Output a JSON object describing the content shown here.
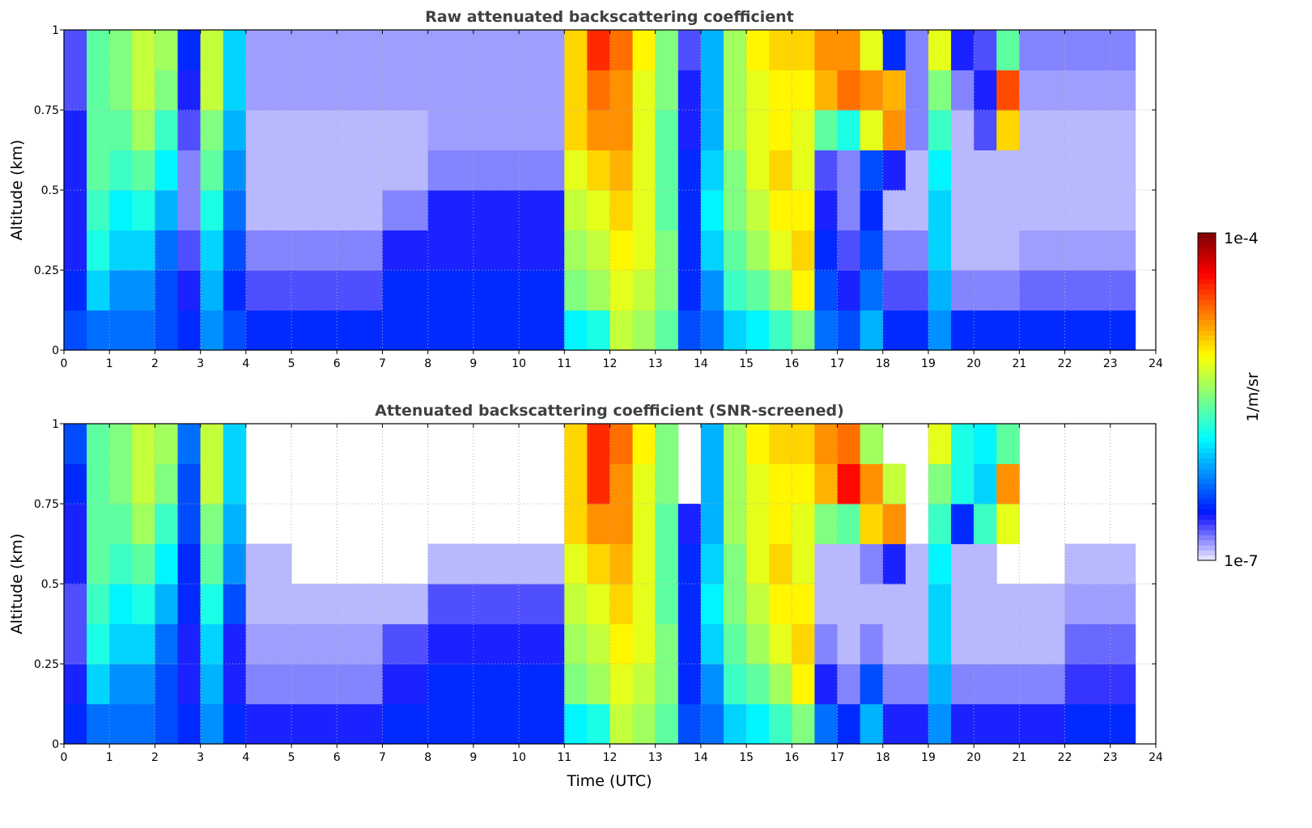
{
  "chart_data": [
    {
      "type": "heatmap",
      "title": "Raw attenuated backscattering coefficient",
      "xlabel": "",
      "ylabel": "Altitude (km)",
      "xlim": [
        0,
        24
      ],
      "ylim": [
        0,
        1
      ],
      "xticks": [
        "0",
        "1",
        "2",
        "3",
        "4",
        "5",
        "6",
        "7",
        "8",
        "9",
        "10",
        "11",
        "12",
        "13",
        "14",
        "15",
        "16",
        "17",
        "18",
        "19",
        "20",
        "21",
        "22",
        "23",
        "24"
      ],
      "yticks": [
        "0",
        "0.25",
        "0.5",
        "0.75",
        "1"
      ],
      "ytick_values": [
        0,
        0.25,
        0.5,
        0.75,
        1
      ],
      "grid": true,
      "time_bin_hours": 0.5,
      "altitude_bins_km": [
        0,
        0.125,
        0.25,
        0.375,
        0.5,
        0.625,
        0.75,
        0.875,
        1.0
      ],
      "data_end_hour": 23.55,
      "value_units": "log10(1/m/sr)",
      "z": [
        [
          -6.4,
          -6.5,
          -6.6,
          -6.6,
          -6.6,
          -6.6,
          -6.7,
          -6.7
        ],
        [
          -6.3,
          -6.0,
          -5.8,
          -5.7,
          -5.6,
          -5.6,
          -5.6,
          -5.6
        ],
        [
          -6.3,
          -6.2,
          -6.0,
          -5.9,
          -5.7,
          -5.6,
          -5.5,
          -5.5
        ],
        [
          -6.3,
          -6.2,
          -6.0,
          -5.8,
          -5.6,
          -5.4,
          -5.3,
          -5.3
        ],
        [
          -6.4,
          -6.4,
          -6.3,
          -6.1,
          -5.9,
          -5.7,
          -5.5,
          -5.4
        ],
        [
          -6.5,
          -6.6,
          -6.7,
          -6.8,
          -6.8,
          -6.7,
          -6.6,
          -6.5
        ],
        [
          -6.2,
          -6.1,
          -6.0,
          -5.8,
          -5.6,
          -5.5,
          -5.3,
          -5.3
        ],
        [
          -6.4,
          -6.5,
          -6.4,
          -6.3,
          -6.2,
          -6.1,
          -6.0,
          -6.0
        ],
        [
          -6.5,
          -6.7,
          -6.8,
          -6.9,
          -6.9,
          -6.9,
          -6.85,
          -6.85
        ],
        [
          -6.5,
          -6.7,
          -6.8,
          -6.9,
          -6.9,
          -6.9,
          -6.85,
          -6.85
        ],
        [
          -6.5,
          -6.7,
          -6.8,
          -6.9,
          -6.9,
          -6.9,
          -6.85,
          -6.85
        ],
        [
          -6.5,
          -6.7,
          -6.8,
          -6.9,
          -6.9,
          -6.9,
          -6.85,
          -6.85
        ],
        [
          -6.5,
          -6.7,
          -6.8,
          -6.9,
          -6.9,
          -6.9,
          -6.85,
          -6.85
        ],
        [
          -6.5,
          -6.7,
          -6.8,
          -6.9,
          -6.9,
          -6.9,
          -6.85,
          -6.85
        ],
        [
          -6.5,
          -6.5,
          -6.6,
          -6.8,
          -6.9,
          -6.9,
          -6.85,
          -6.85
        ],
        [
          -6.5,
          -6.5,
          -6.6,
          -6.8,
          -6.9,
          -6.9,
          -6.85,
          -6.85
        ],
        [
          -6.5,
          -6.5,
          -6.6,
          -6.6,
          -6.8,
          -6.85,
          -6.85,
          -6.85
        ],
        [
          -6.5,
          -6.5,
          -6.6,
          -6.6,
          -6.8,
          -6.85,
          -6.85,
          -6.85
        ],
        [
          -6.5,
          -6.5,
          -6.6,
          -6.6,
          -6.8,
          -6.85,
          -6.85,
          -6.85
        ],
        [
          -6.5,
          -6.5,
          -6.6,
          -6.6,
          -6.8,
          -6.85,
          -6.85,
          -6.85
        ],
        [
          -6.5,
          -6.5,
          -6.6,
          -6.6,
          -6.8,
          -6.85,
          -6.85,
          -6.85
        ],
        [
          -6.5,
          -6.5,
          -6.6,
          -6.6,
          -6.8,
          -6.85,
          -6.85,
          -6.85
        ],
        [
          -5.9,
          -5.5,
          -5.4,
          -5.3,
          -5.2,
          -5.0,
          -5.0,
          -5.0
        ],
        [
          -5.8,
          -5.4,
          -5.3,
          -5.2,
          -5.0,
          -4.8,
          -4.7,
          -4.5
        ],
        [
          -5.3,
          -5.2,
          -5.1,
          -5.0,
          -4.9,
          -4.8,
          -4.8,
          -4.7
        ],
        [
          -5.4,
          -5.3,
          -5.2,
          -5.2,
          -5.2,
          -5.2,
          -5.2,
          -5.1
        ],
        [
          -5.6,
          -5.5,
          -5.5,
          -5.6,
          -5.6,
          -5.6,
          -5.5,
          -5.5
        ],
        [
          -6.4,
          -6.5,
          -6.5,
          -6.5,
          -6.5,
          -6.6,
          -6.6,
          -6.7
        ],
        [
          -6.3,
          -6.2,
          -6.0,
          -5.9,
          -6.0,
          -6.1,
          -6.1,
          -6.1
        ],
        [
          -6.0,
          -5.7,
          -5.6,
          -5.5,
          -5.5,
          -5.4,
          -5.4,
          -5.4
        ],
        [
          -5.9,
          -5.6,
          -5.4,
          -5.3,
          -5.2,
          -5.2,
          -5.2,
          -5.1
        ],
        [
          -5.7,
          -5.4,
          -5.2,
          -5.1,
          -5.0,
          -5.1,
          -5.1,
          -5.0
        ],
        [
          -5.5,
          -5.1,
          -5.0,
          -5.1,
          -5.2,
          -5.2,
          -5.1,
          -5.0
        ],
        [
          -6.3,
          -6.4,
          -6.5,
          -6.6,
          -6.7,
          -5.6,
          -4.9,
          -4.8
        ],
        [
          -6.4,
          -6.6,
          -6.7,
          -6.8,
          -6.8,
          -5.8,
          -4.7,
          -4.8
        ],
        [
          -6.1,
          -6.3,
          -6.4,
          -6.5,
          -6.4,
          -5.2,
          -4.8,
          -5.2
        ],
        [
          -6.5,
          -6.7,
          -6.8,
          -6.9,
          -6.6,
          -4.8,
          -4.9,
          -6.5
        ],
        [
          -6.5,
          -6.7,
          -6.8,
          -6.9,
          -6.9,
          -6.8,
          -6.8,
          -6.8
        ],
        [
          -6.2,
          -6.1,
          -6.0,
          -6.0,
          -5.9,
          -5.7,
          -5.5,
          -5.2
        ],
        [
          -6.5,
          -6.8,
          -6.9,
          -6.9,
          -6.9,
          -6.9,
          -6.8,
          -6.6
        ],
        [
          -6.5,
          -6.8,
          -6.9,
          -6.9,
          -6.9,
          -6.7,
          -6.6,
          -6.7
        ],
        [
          -6.5,
          -6.8,
          -6.9,
          -6.9,
          -6.9,
          -5.0,
          -4.6,
          -5.6
        ],
        [
          -6.5,
          -6.75,
          -6.85,
          -6.9,
          -6.9,
          -6.9,
          -6.85,
          -6.8
        ],
        [
          -6.5,
          -6.75,
          -6.85,
          -6.9,
          -6.9,
          -6.9,
          -6.85,
          -6.8
        ],
        [
          -6.5,
          -6.75,
          -6.85,
          -6.9,
          -6.9,
          -6.9,
          -6.85,
          -6.8
        ],
        [
          -6.5,
          -6.75,
          -6.85,
          -6.9,
          -6.9,
          -6.9,
          -6.85,
          -6.8
        ],
        [
          -6.5,
          -6.75,
          -6.85,
          -6.9,
          -6.9,
          -6.9,
          -6.85,
          -6.8
        ],
        [
          -6.5,
          -6.75,
          -6.85,
          -6.9,
          -6.9,
          -6.9,
          -6.85,
          -6.8
        ]
      ]
    },
    {
      "type": "heatmap",
      "title": "Attenuated backscattering coefficient (SNR-screened)",
      "xlabel": "Time (UTC)",
      "ylabel": "Altitude (km)",
      "xlim": [
        0,
        24
      ],
      "ylim": [
        0,
        1
      ],
      "xticks": [
        "0",
        "1",
        "2",
        "3",
        "4",
        "5",
        "6",
        "7",
        "8",
        "9",
        "10",
        "11",
        "12",
        "13",
        "14",
        "15",
        "16",
        "17",
        "18",
        "19",
        "20",
        "21",
        "22",
        "23",
        "24"
      ],
      "yticks": [
        "0",
        "0.25",
        "0.5",
        "0.75",
        "1"
      ],
      "ytick_values": [
        0,
        0.25,
        0.5,
        0.75,
        1
      ],
      "grid": true,
      "time_bin_hours": 0.5,
      "altitude_bins_km": [
        0,
        0.125,
        0.25,
        0.375,
        0.5,
        0.625,
        0.75,
        0.875,
        1.0
      ],
      "data_end_hour": 23.55,
      "value_units": "log10(1/m/sr)",
      "z": [
        [
          -6.5,
          -6.6,
          -6.7,
          -6.7,
          -6.6,
          -6.6,
          -6.5,
          -6.4
        ],
        [
          -6.3,
          -6.0,
          -5.8,
          -5.7,
          -5.6,
          -5.6,
          -5.6,
          -5.6
        ],
        [
          -6.3,
          -6.2,
          -6.0,
          -5.9,
          -5.7,
          -5.6,
          -5.5,
          -5.5
        ],
        [
          -6.3,
          -6.2,
          -6.0,
          -5.8,
          -5.6,
          -5.4,
          -5.3,
          -5.3
        ],
        [
          -6.4,
          -6.4,
          -6.3,
          -6.1,
          -5.9,
          -5.7,
          -5.5,
          -5.4
        ],
        [
          -6.5,
          -6.6,
          -6.6,
          -6.5,
          -6.5,
          -6.4,
          -6.4,
          -6.3
        ],
        [
          -6.2,
          -6.1,
          -6.0,
          -5.8,
          -5.6,
          -5.5,
          -5.3,
          -5.3
        ],
        [
          -6.5,
          -6.6,
          -6.6,
          -6.4,
          -6.2,
          -6.1,
          -6.0,
          -6.0
        ],
        [
          -6.6,
          -6.8,
          -6.85,
          -6.9,
          -6.9,
          null,
          null,
          null
        ],
        [
          -6.6,
          -6.8,
          -6.85,
          -6.9,
          -6.9,
          null,
          null,
          null
        ],
        [
          -6.6,
          -6.8,
          -6.85,
          -6.9,
          null,
          null,
          null,
          null
        ],
        [
          -6.6,
          -6.8,
          -6.85,
          -6.9,
          null,
          null,
          null,
          null
        ],
        [
          -6.6,
          -6.8,
          -6.85,
          -6.9,
          null,
          null,
          null,
          null
        ],
        [
          -6.6,
          -6.8,
          -6.85,
          -6.9,
          null,
          null,
          null,
          null
        ],
        [
          -6.5,
          -6.6,
          -6.7,
          -6.9,
          null,
          null,
          null,
          null
        ],
        [
          -6.5,
          -6.6,
          -6.7,
          -6.9,
          null,
          null,
          null,
          null
        ],
        [
          -6.5,
          -6.5,
          -6.6,
          -6.7,
          -6.9,
          null,
          null,
          null
        ],
        [
          -6.5,
          -6.5,
          -6.6,
          -6.7,
          -6.9,
          null,
          null,
          null
        ],
        [
          -6.5,
          -6.5,
          -6.6,
          -6.7,
          -6.9,
          null,
          null,
          null
        ],
        [
          -6.5,
          -6.5,
          -6.6,
          -6.7,
          -6.9,
          null,
          null,
          null
        ],
        [
          -6.5,
          -6.5,
          -6.6,
          -6.7,
          -6.9,
          null,
          null,
          null
        ],
        [
          -6.5,
          -6.5,
          -6.6,
          -6.7,
          -6.9,
          null,
          null,
          null
        ],
        [
          -5.9,
          -5.5,
          -5.4,
          -5.3,
          -5.2,
          -5.0,
          -5.0,
          -5.0
        ],
        [
          -5.8,
          -5.4,
          -5.3,
          -5.2,
          -5.0,
          -4.8,
          -4.5,
          -4.5
        ],
        [
          -5.3,
          -5.2,
          -5.1,
          -5.0,
          -4.9,
          -4.8,
          -4.8,
          -4.7
        ],
        [
          -5.4,
          -5.3,
          -5.2,
          -5.2,
          -5.2,
          -5.2,
          -5.2,
          -5.1
        ],
        [
          -5.6,
          -5.5,
          -5.5,
          -5.6,
          -5.6,
          -5.6,
          -5.5,
          -5.5
        ],
        [
          -6.4,
          -6.5,
          -6.5,
          -6.5,
          -6.5,
          -6.6,
          null,
          null
        ],
        [
          -6.3,
          -6.2,
          -6.0,
          -5.9,
          -6.0,
          -6.1,
          -6.1,
          -6.1
        ],
        [
          -6.0,
          -5.7,
          -5.6,
          -5.5,
          -5.5,
          -5.4,
          -5.4,
          -5.4
        ],
        [
          -5.9,
          -5.6,
          -5.4,
          -5.3,
          -5.2,
          -5.2,
          -5.2,
          -5.1
        ],
        [
          -5.7,
          -5.4,
          -5.2,
          -5.1,
          -5.0,
          -5.1,
          -5.1,
          -5.0
        ],
        [
          -5.5,
          -5.1,
          -5.0,
          -5.1,
          -5.2,
          -5.2,
          -5.1,
          -5.0
        ],
        [
          -6.3,
          -6.6,
          -6.8,
          -6.9,
          -6.9,
          -5.5,
          -4.9,
          -4.8
        ],
        [
          -6.5,
          -6.8,
          -6.9,
          -6.9,
          -6.9,
          -5.6,
          -4.4,
          -4.7
        ],
        [
          -6.1,
          -6.4,
          -6.8,
          -6.9,
          -6.8,
          -5.0,
          -4.8,
          -5.4
        ],
        [
          -6.6,
          -6.8,
          -6.9,
          -6.9,
          -6.6,
          -4.8,
          -5.3,
          null
        ],
        [
          -6.6,
          -6.8,
          -6.9,
          -6.9,
          -6.9,
          null,
          null,
          null
        ],
        [
          -6.2,
          -6.1,
          -6.0,
          -6.0,
          -5.9,
          -5.7,
          -5.5,
          -5.2
        ],
        [
          -6.6,
          -6.8,
          -6.9,
          -6.9,
          -6.9,
          -6.5,
          -5.8,
          -5.8
        ],
        [
          -6.6,
          -6.8,
          -6.9,
          -6.9,
          -6.9,
          -5.7,
          -6.0,
          -5.9
        ],
        [
          -6.6,
          -6.8,
          -6.9,
          -6.9,
          null,
          -5.2,
          -4.8,
          -5.6
        ],
        [
          -6.6,
          -6.8,
          -6.9,
          -6.9,
          null,
          null,
          null,
          null
        ],
        [
          -6.6,
          -6.8,
          -6.9,
          -6.9,
          null,
          null,
          null,
          null
        ],
        [
          -6.5,
          -6.65,
          -6.75,
          -6.85,
          -6.9,
          null,
          null,
          null
        ],
        [
          -6.5,
          -6.65,
          -6.75,
          -6.85,
          -6.9,
          null,
          null,
          null
        ],
        [
          -6.5,
          -6.65,
          -6.75,
          -6.85,
          -6.9,
          null,
          null,
          null
        ],
        [
          -6.5,
          -6.65,
          -6.75,
          -6.85,
          -6.9,
          null,
          null,
          null
        ]
      ]
    }
  ],
  "colorbar": {
    "label": "1/m/sr",
    "max_label": "1e-4",
    "min_label": "1e-7",
    "log10_range": [
      -7,
      -4
    ],
    "scale": "log"
  }
}
